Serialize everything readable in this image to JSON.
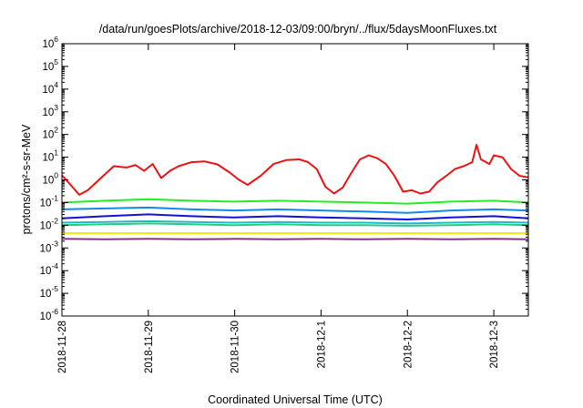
{
  "chart_data": {
    "type": "line",
    "title": "/data/run/goesPlots/archive/2018-12-03/09:00/bryn/../flux/5daysMoonFluxes.txt",
    "xlabel": "Coordinated Universal Time (UTC)",
    "ylabel": "protons/cm²-s-sr-MeV",
    "yscale": "log",
    "ylim": [
      1e-06,
      1000000.0
    ],
    "y_tick_exponents": [
      -6,
      -5,
      -4,
      -3,
      -2,
      -1,
      0,
      1,
      2,
      3,
      4,
      5,
      6
    ],
    "x_tick_labels": [
      "2018-11-28",
      "2018-11-29",
      "2018-11-30",
      "2018-12-1",
      "2018-12-2",
      "2018-12-3"
    ],
    "x_tick_days": [
      0,
      1,
      2,
      3,
      4,
      5
    ],
    "xlim_days": [
      0,
      5.4
    ],
    "grid": false,
    "legend": "none",
    "series": [
      {
        "color": "#ee1111",
        "x": [
          0,
          0.1,
          0.2,
          0.3,
          0.45,
          0.6,
          0.75,
          0.85,
          0.95,
          1.05,
          1.15,
          1.25,
          1.35,
          1.5,
          1.65,
          1.8,
          1.95,
          2.05,
          2.15,
          2.3,
          2.45,
          2.6,
          2.75,
          2.85,
          2.95,
          3.05,
          3.15,
          3.25,
          3.35,
          3.45,
          3.55,
          3.65,
          3.75,
          3.85,
          3.95,
          4.05,
          4.15,
          4.25,
          4.35,
          4.45,
          4.55,
          4.65,
          4.75,
          4.8,
          4.85,
          4.95,
          5.0,
          5.1,
          5.2,
          5.3,
          5.4
        ],
        "values": [
          1.6,
          0.6,
          0.22,
          0.35,
          1.2,
          4.0,
          3.5,
          4.5,
          2.5,
          5.0,
          1.2,
          2.5,
          4.0,
          6.0,
          6.5,
          4.8,
          2.0,
          1.0,
          0.6,
          1.5,
          5.0,
          7.5,
          8.0,
          6.0,
          3.0,
          0.5,
          0.25,
          0.45,
          2.0,
          8.0,
          12.0,
          9.0,
          5.0,
          1.5,
          0.3,
          0.35,
          0.25,
          0.3,
          0.8,
          1.5,
          3.0,
          4.0,
          6.0,
          35,
          8.0,
          5.0,
          12.0,
          10.0,
          3.0,
          1.5,
          1.3
        ]
      },
      {
        "color": "#22ee22",
        "x": [
          0,
          0.5,
          1.0,
          1.5,
          2.0,
          2.5,
          3.0,
          3.5,
          4.0,
          4.5,
          5.0,
          5.4
        ],
        "values": [
          0.1,
          0.12,
          0.14,
          0.12,
          0.11,
          0.12,
          0.11,
          0.1,
          0.09,
          0.11,
          0.12,
          0.1
        ]
      },
      {
        "color": "#1188ee",
        "x": [
          0,
          0.5,
          1.0,
          1.5,
          2.0,
          2.5,
          3.0,
          3.5,
          4.0,
          4.5,
          5.0,
          5.4
        ],
        "values": [
          0.05,
          0.055,
          0.06,
          0.05,
          0.045,
          0.05,
          0.045,
          0.04,
          0.035,
          0.045,
          0.05,
          0.045
        ]
      },
      {
        "color": "#1111dd",
        "x": [
          0,
          0.5,
          1.0,
          1.5,
          2.0,
          2.5,
          3.0,
          3.5,
          4.0,
          4.5,
          5.0,
          5.4
        ],
        "values": [
          0.02,
          0.025,
          0.03,
          0.025,
          0.022,
          0.025,
          0.022,
          0.02,
          0.018,
          0.022,
          0.025,
          0.02
        ]
      },
      {
        "color": "#22bbbb",
        "x": [
          0,
          0.5,
          1.0,
          1.5,
          2.0,
          2.5,
          3.0,
          3.5,
          4.0,
          4.5,
          5.0,
          5.4
        ],
        "values": [
          0.013,
          0.014,
          0.015,
          0.014,
          0.013,
          0.014,
          0.013,
          0.013,
          0.012,
          0.013,
          0.014,
          0.013
        ]
      },
      {
        "color": "#22cc88",
        "x": [
          0,
          0.5,
          1.0,
          1.5,
          2.0,
          2.5,
          3.0,
          3.5,
          4.0,
          4.5,
          5.0,
          5.4
        ],
        "values": [
          0.01,
          0.011,
          0.012,
          0.011,
          0.01,
          0.011,
          0.01,
          0.01,
          0.0095,
          0.01,
          0.011,
          0.01
        ]
      },
      {
        "color": "#eeee11",
        "x": [
          0,
          0.5,
          1.0,
          1.5,
          2.0,
          2.5,
          3.0,
          3.5,
          4.0,
          4.5,
          5.0,
          5.4
        ],
        "values": [
          0.0045,
          0.0045,
          0.0045,
          0.0045,
          0.0045,
          0.0045,
          0.0045,
          0.0045,
          0.0045,
          0.0045,
          0.0045,
          0.0045
        ]
      },
      {
        "color": "#883388",
        "x": [
          0,
          0.5,
          1.0,
          1.5,
          2.0,
          2.5,
          3.0,
          3.5,
          4.0,
          4.5,
          5.0,
          5.4
        ],
        "values": [
          0.0025,
          0.0024,
          0.0025,
          0.0024,
          0.0025,
          0.0024,
          0.0025,
          0.0024,
          0.0025,
          0.0024,
          0.0025,
          0.0024
        ]
      }
    ]
  }
}
